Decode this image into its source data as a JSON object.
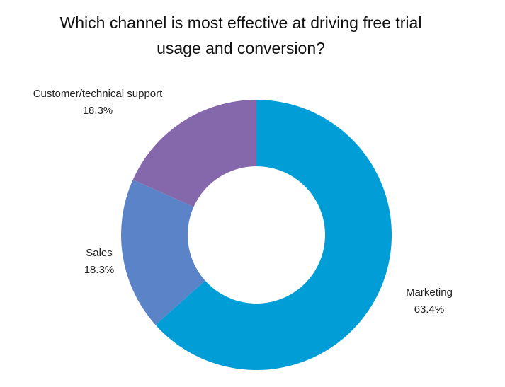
{
  "chart_data": {
    "type": "pie",
    "donut": true,
    "title_lines": [
      "Which channel is most effective at driving free trial",
      "usage and conversion?"
    ],
    "slices": [
      {
        "label": "Marketing",
        "value": 63.4,
        "value_label": "63.4%",
        "color": "#019dd6"
      },
      {
        "label": "Sales",
        "value": 18.3,
        "value_label": "18.3%",
        "color": "#5b84c8"
      },
      {
        "label": "Customer/technical support",
        "value": 18.3,
        "value_label": "18.3%",
        "color": "#8567ab"
      }
    ],
    "start_angle_deg": 0,
    "direction": "clockwise",
    "legend": "none"
  }
}
